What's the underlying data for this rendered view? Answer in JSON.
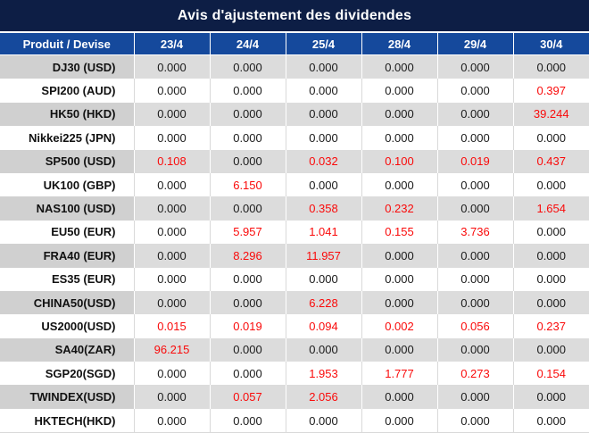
{
  "title": "Avis d'ajustement des dividendes",
  "columns": [
    "Produit / Devise",
    "23/4",
    "24/4",
    "25/4",
    "28/4",
    "29/4",
    "30/4"
  ],
  "rows": [
    {
      "label": "DJ30 (USD)",
      "values": [
        "0.000",
        "0.000",
        "0.000",
        "0.000",
        "0.000",
        "0.000"
      ],
      "red": [
        false,
        false,
        false,
        false,
        false,
        false
      ]
    },
    {
      "label": "SPI200 (AUD)",
      "values": [
        "0.000",
        "0.000",
        "0.000",
        "0.000",
        "0.000",
        "0.397"
      ],
      "red": [
        false,
        false,
        false,
        false,
        false,
        true
      ]
    },
    {
      "label": "HK50 (HKD)",
      "values": [
        "0.000",
        "0.000",
        "0.000",
        "0.000",
        "0.000",
        "39.244"
      ],
      "red": [
        false,
        false,
        false,
        false,
        false,
        true
      ]
    },
    {
      "label": "Nikkei225 (JPN)",
      "values": [
        "0.000",
        "0.000",
        "0.000",
        "0.000",
        "0.000",
        "0.000"
      ],
      "red": [
        false,
        false,
        false,
        false,
        false,
        false
      ]
    },
    {
      "label": "SP500 (USD)",
      "values": [
        "0.108",
        "0.000",
        "0.032",
        "0.100",
        "0.019",
        "0.437"
      ],
      "red": [
        true,
        false,
        true,
        true,
        true,
        true
      ]
    },
    {
      "label": "UK100 (GBP)",
      "values": [
        "0.000",
        "6.150",
        "0.000",
        "0.000",
        "0.000",
        "0.000"
      ],
      "red": [
        false,
        true,
        false,
        false,
        false,
        false
      ]
    },
    {
      "label": "NAS100 (USD)",
      "values": [
        "0.000",
        "0.000",
        "0.358",
        "0.232",
        "0.000",
        "1.654"
      ],
      "red": [
        false,
        false,
        true,
        true,
        false,
        true
      ]
    },
    {
      "label": "EU50 (EUR)",
      "values": [
        "0.000",
        "5.957",
        "1.041",
        "0.155",
        "3.736",
        "0.000"
      ],
      "red": [
        false,
        true,
        true,
        true,
        true,
        false
      ]
    },
    {
      "label": "FRA40 (EUR)",
      "values": [
        "0.000",
        "8.296",
        "11.957",
        "0.000",
        "0.000",
        "0.000"
      ],
      "red": [
        false,
        true,
        true,
        false,
        false,
        false
      ]
    },
    {
      "label": "ES35 (EUR)",
      "values": [
        "0.000",
        "0.000",
        "0.000",
        "0.000",
        "0.000",
        "0.000"
      ],
      "red": [
        false,
        false,
        false,
        false,
        false,
        false
      ]
    },
    {
      "label": "CHINA50(USD)",
      "values": [
        "0.000",
        "0.000",
        "6.228",
        "0.000",
        "0.000",
        "0.000"
      ],
      "red": [
        false,
        false,
        true,
        false,
        false,
        false
      ]
    },
    {
      "label": "US2000(USD)",
      "values": [
        "0.015",
        "0.019",
        "0.094",
        "0.002",
        "0.056",
        "0.237"
      ],
      "red": [
        true,
        true,
        true,
        true,
        true,
        true
      ]
    },
    {
      "label": "SA40(ZAR)",
      "values": [
        "96.215",
        "0.000",
        "0.000",
        "0.000",
        "0.000",
        "0.000"
      ],
      "red": [
        true,
        false,
        false,
        false,
        false,
        false
      ]
    },
    {
      "label": "SGP20(SGD)",
      "values": [
        "0.000",
        "0.000",
        "1.953",
        "1.777",
        "0.273",
        "0.154"
      ],
      "red": [
        false,
        false,
        true,
        true,
        true,
        true
      ]
    },
    {
      "label": "TWINDEX(USD)",
      "values": [
        "0.000",
        "0.057",
        "2.056",
        "0.000",
        "0.000",
        "0.000"
      ],
      "red": [
        false,
        true,
        true,
        false,
        false,
        false
      ]
    },
    {
      "label": "HKTECH(HKD)",
      "values": [
        "0.000",
        "0.000",
        "0.000",
        "0.000",
        "0.000",
        "0.000"
      ],
      "red": [
        false,
        false,
        false,
        false,
        false,
        false
      ]
    }
  ],
  "colors": {
    "title_bg": "#0d1e45",
    "header_bg": "#15499c",
    "row_alt_bg": "#dcdcdc",
    "label_alt_bg": "#d0d0d0",
    "row_bg": "#ffffff",
    "divider_light": "#d9d9d9",
    "value_text": "#1a1a1a",
    "highlight_text": "#fa0a0a"
  }
}
